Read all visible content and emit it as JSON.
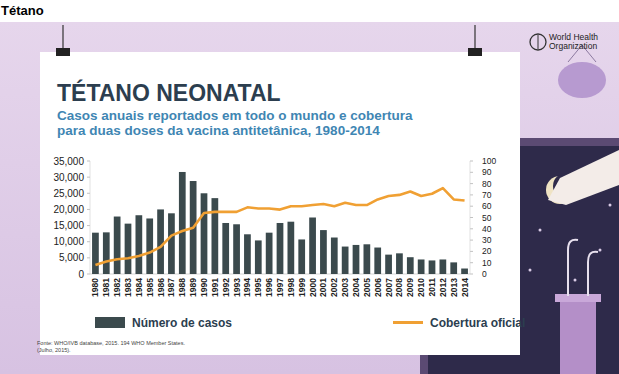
{
  "heading": "Tétano",
  "organization": [
    "World Health",
    "Organization"
  ],
  "chart_data": {
    "type": "bar",
    "title": "TÉTANO NEONATAL",
    "subtitle": [
      "Casos anuais reportados em todo o mundo e cobertura",
      "para duas doses da vacina antitetânica, 1980-2014"
    ],
    "source": [
      "Fonte: WHO/IVB database, 2015. 194 WHO Member States.",
      "(Julho, 2015)."
    ],
    "categories": [
      "1980",
      "1981",
      "1982",
      "1983",
      "1984",
      "1985",
      "1986",
      "1987",
      "1988",
      "1989",
      "1990",
      "1991",
      "1992",
      "1993",
      "1994",
      "1995",
      "1996",
      "1997",
      "1998",
      "1999",
      "2000",
      "2001",
      "2002",
      "2003",
      "2004",
      "2005",
      "2006",
      "2007",
      "2008",
      "2009",
      "2010",
      "2011",
      "2012",
      "2013",
      "2014"
    ],
    "series": [
      {
        "name": "Número de casos",
        "type": "bar",
        "color": "#3b4a4d",
        "values": [
          12800,
          12900,
          17800,
          15600,
          18200,
          17200,
          20000,
          18800,
          31600,
          28800,
          25000,
          23500,
          15800,
          15400,
          12300,
          10400,
          12800,
          15800,
          16200,
          10700,
          17500,
          13600,
          11300,
          8500,
          9000,
          9200,
          8200,
          6000,
          6400,
          5200,
          4500,
          4200,
          4500,
          3600,
          1700
        ]
      },
      {
        "name": "Cobertura oficial",
        "type": "line",
        "axis": "y2",
        "color": "#f0a033",
        "values": [
          8,
          11,
          13,
          14,
          16,
          19,
          24,
          34,
          38,
          41,
          54,
          55,
          55,
          55,
          59,
          58,
          58,
          57,
          60,
          60,
          61,
          62,
          60,
          63,
          61,
          61,
          66,
          69,
          70,
          73,
          69,
          71,
          76,
          66,
          65
        ]
      }
    ],
    "ylim": [
      0,
      35000
    ],
    "yticks": [
      0,
      {
        "value": 5000,
        "label": "5,000"
      },
      {
        "value": 10000,
        "label": "10,000"
      },
      {
        "value": 15000,
        "label": "15,000"
      },
      {
        "value": 20000,
        "label": "20,000"
      },
      {
        "value": 25000,
        "label": "25,000"
      },
      {
        "value": 30000,
        "label": "30,000"
      },
      {
        "value": 35000,
        "label": "35,000"
      }
    ],
    "y2lim": [
      0,
      100
    ],
    "y2ticks": [
      0,
      10,
      20,
      30,
      40,
      50,
      60,
      70,
      80,
      90,
      100
    ],
    "grid": false,
    "legend": "bottom"
  }
}
